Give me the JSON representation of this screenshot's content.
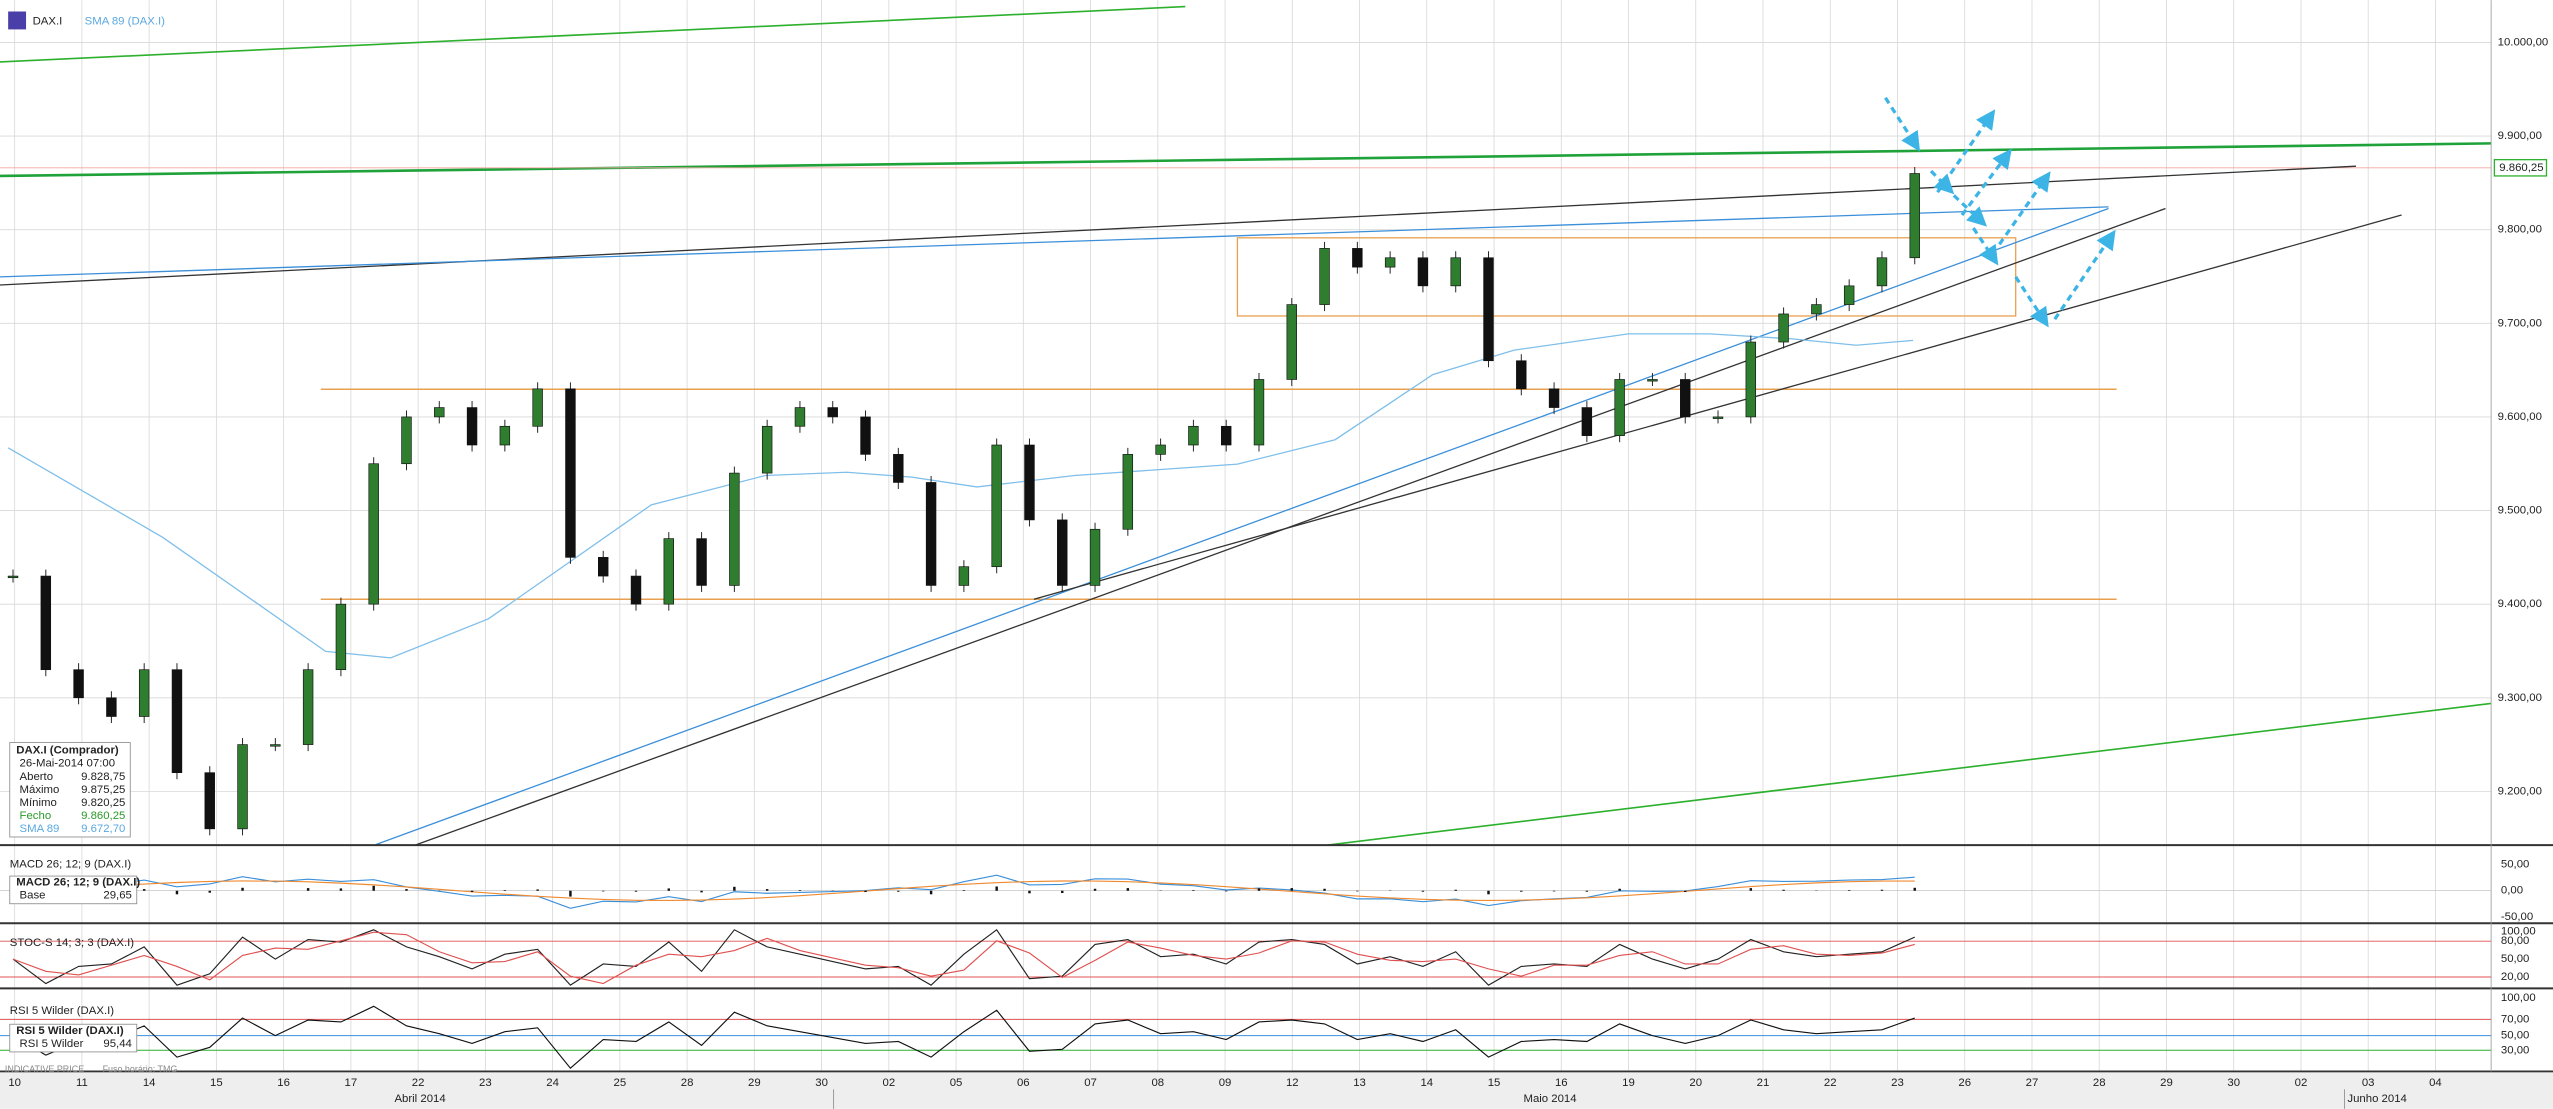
{
  "toolbar": {
    "symbol": "DAX.I",
    "overlay": "SMA 89 (DAX.I)"
  },
  "price_axis": {
    "ticks": [
      {
        "value": 10000,
        "label": "10.000,00"
      },
      {
        "value": 9900,
        "label": "9.900,00"
      },
      {
        "value": 9800,
        "label": "9.800,00"
      },
      {
        "value": 9700,
        "label": "9.700,00"
      },
      {
        "value": 9600,
        "label": "9.600,00"
      },
      {
        "value": 9500,
        "label": "9.500,00"
      },
      {
        "value": 9400,
        "label": "9.400,00"
      },
      {
        "value": 9300,
        "label": "9.300,00"
      },
      {
        "value": 9200,
        "label": "9.200,00"
      }
    ],
    "last_price": "9.860,25"
  },
  "date_axis": {
    "days": [
      "10",
      "11",
      "14",
      "15",
      "16",
      "17",
      "22",
      "23",
      "24",
      "25",
      "28",
      "29",
      "30",
      "02",
      "05",
      "06",
      "07",
      "08",
      "09",
      "12",
      "13",
      "14",
      "15",
      "16",
      "19",
      "20",
      "21",
      "22",
      "23",
      "26",
      "27",
      "28",
      "29",
      "30",
      "02",
      "03",
      "04"
    ],
    "months": [
      "Abril 2014",
      "Maio 2014",
      "Junho 2014"
    ]
  },
  "info_box": {
    "title": "DAX.I (Comprador)",
    "date": "26-Mai-2014 07:00",
    "rows": [
      [
        "Aberto",
        "9.828,75"
      ],
      [
        "Máximo",
        "9.875,25"
      ],
      [
        "Mínimo",
        "9.820,25"
      ],
      [
        "Fecho",
        "9.860,25"
      ],
      [
        "SMA 89",
        "9.672,70"
      ]
    ]
  },
  "indicators": [
    {
      "label": "MACD 26; 12; 9 (DAX.I)",
      "box_title": "MACD 26; 12; 9 (DAX.I)",
      "box_rows": [
        [
          "Base",
          "29,65"
        ]
      ],
      "scale": [
        "50,00",
        "0,00",
        "-50,00"
      ]
    },
    {
      "label": "STOC-S 14; 3; 3 (DAX.I)",
      "scale": [
        "100,00",
        "80,00",
        "50,00",
        "20,00"
      ]
    },
    {
      "label": "RSI 5 Wilder (DAX.I)",
      "box_title": "RSI 5 Wilder (DAX.I)",
      "box_rows": [
        [
          "RSI 5 Wilder",
          "95,44"
        ]
      ],
      "scale": [
        "100,00",
        "70,00",
        "50,00",
        "30,00"
      ]
    }
  ],
  "footer": {
    "note": "INDICATIVE PRICE",
    "timezone": "Fuso horário: TMG"
  },
  "price_series": {
    "closes": [
      9430,
      9330,
      9300,
      9280,
      9330,
      9220,
      9160,
      9250,
      9250,
      9330,
      9400,
      9550,
      9600,
      9610,
      9570,
      9590,
      9630,
      9450,
      9430,
      9400,
      9470,
      9420,
      9540,
      9590,
      9610,
      9600,
      9560,
      9530,
      9420,
      9440,
      9570,
      9490,
      9420,
      9480,
      9560,
      9570,
      9590,
      9570,
      9640,
      9720,
      9780,
      9760,
      9770,
      9740,
      9770,
      9660,
      9630,
      9610,
      9580,
      9640,
      9640,
      9600,
      9600,
      9680,
      9710,
      9720,
      9740,
      9770,
      9860
    ]
  }
}
